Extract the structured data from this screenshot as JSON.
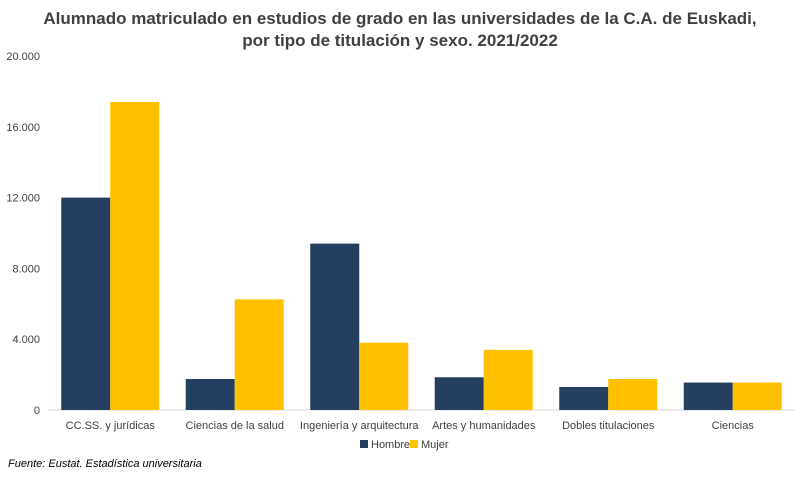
{
  "chart_data": {
    "type": "bar",
    "title_line1": "Alumnado matriculado en estudios de grado en las universidades de la C.A. de Euskadi,",
    "title_line2": "por tipo de titulación y sexo. 2021/2022",
    "categories": [
      "CC.SS. y jurídicas",
      "Ciencias de la salud",
      "Ingeniería y arquitectura",
      "Artes y humanidades",
      "Dobles titulaciones",
      "Ciencias"
    ],
    "series": [
      {
        "name": "Hombre",
        "color": "#243F60",
        "values": [
          12000,
          1750,
          9400,
          1850,
          1300,
          1550
        ]
      },
      {
        "name": "Mujer",
        "color": "#FFC000",
        "values": [
          17400,
          6250,
          3800,
          3400,
          1750,
          1550
        ]
      }
    ],
    "ylim": [
      0,
      20000
    ],
    "yticks": [
      0,
      4000,
      8000,
      12000,
      16000,
      20000
    ],
    "ytick_labels": [
      "0",
      "4.000",
      "8.000",
      "12.000",
      "16.000",
      "20.000"
    ],
    "grid": false,
    "legend_position": "bottom"
  },
  "source": "Fuente: Eustat. Estadística universitaria"
}
